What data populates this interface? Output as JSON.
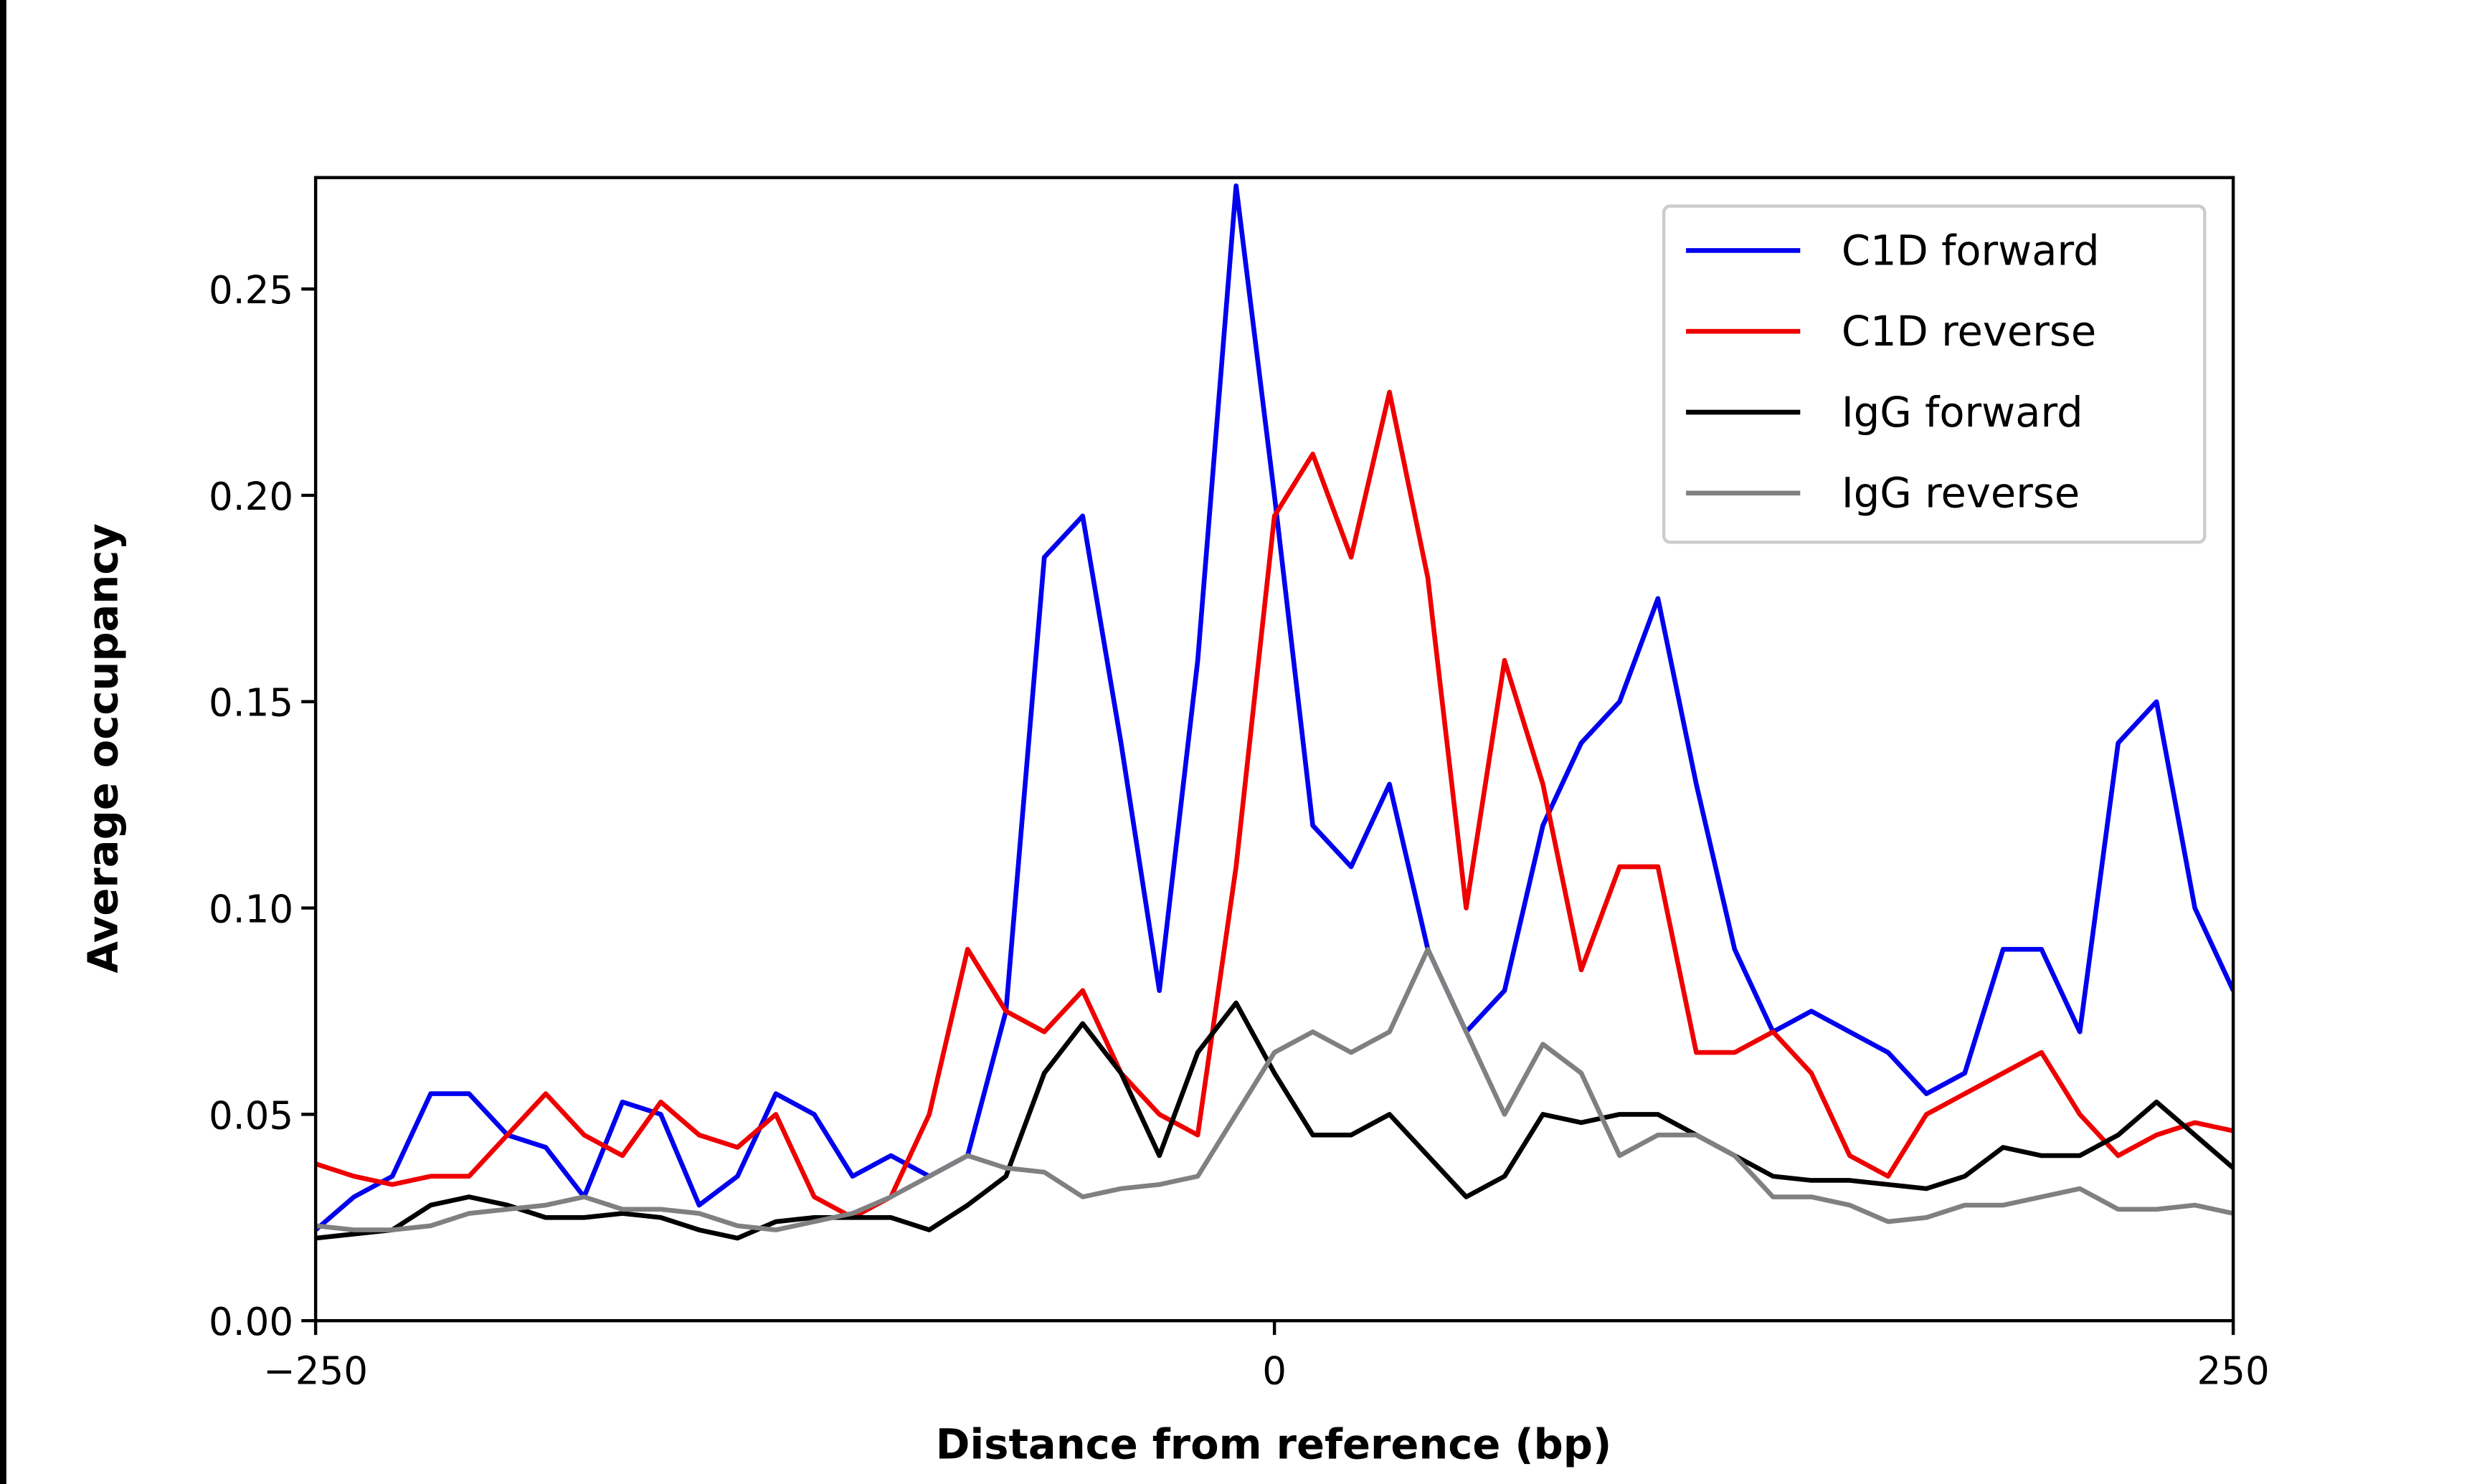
{
  "chart_data": {
    "type": "line",
    "x_label": "Distance from reference (bp)",
    "y_label": "Average occupancy",
    "x": [
      -250,
      -240,
      -230,
      -220,
      -210,
      -200,
      -190,
      -180,
      -170,
      -160,
      -150,
      -140,
      -130,
      -120,
      -110,
      -100,
      -90,
      -80,
      -70,
      -60,
      -50,
      -40,
      -30,
      -20,
      -10,
      0,
      10,
      20,
      30,
      40,
      50,
      60,
      70,
      80,
      90,
      100,
      110,
      120,
      130,
      140,
      150,
      160,
      170,
      180,
      190,
      200,
      210,
      220,
      230,
      240,
      250
    ],
    "series": [
      {
        "name": "C1D forward",
        "color": "#0000ee",
        "values": [
          0.022,
          0.03,
          0.035,
          0.055,
          0.055,
          0.045,
          0.042,
          0.03,
          0.053,
          0.05,
          0.028,
          0.035,
          0.055,
          0.05,
          0.035,
          0.04,
          0.035,
          0.04,
          0.075,
          0.185,
          0.195,
          0.14,
          0.08,
          0.16,
          0.275,
          0.2,
          0.12,
          0.11,
          0.13,
          0.09,
          0.07,
          0.08,
          0.12,
          0.14,
          0.15,
          0.175,
          0.13,
          0.09,
          0.07,
          0.075,
          0.07,
          0.065,
          0.055,
          0.06,
          0.09,
          0.09,
          0.07,
          0.14,
          0.15,
          0.1,
          0.08
        ]
      },
      {
        "name": "C1D reverse",
        "color": "#ee0000",
        "values": [
          0.038,
          0.035,
          0.033,
          0.035,
          0.035,
          0.045,
          0.055,
          0.045,
          0.04,
          0.053,
          0.045,
          0.042,
          0.05,
          0.03,
          0.025,
          0.03,
          0.05,
          0.09,
          0.075,
          0.07,
          0.08,
          0.06,
          0.05,
          0.045,
          0.11,
          0.195,
          0.21,
          0.185,
          0.225,
          0.18,
          0.1,
          0.16,
          0.13,
          0.085,
          0.11,
          0.11,
          0.065,
          0.065,
          0.07,
          0.06,
          0.04,
          0.035,
          0.05,
          0.055,
          0.06,
          0.065,
          0.05,
          0.04,
          0.045,
          0.048,
          0.046
        ]
      },
      {
        "name": "IgG forward",
        "color": "#000000",
        "values": [
          0.02,
          0.021,
          0.022,
          0.028,
          0.03,
          0.028,
          0.025,
          0.025,
          0.026,
          0.025,
          0.022,
          0.02,
          0.024,
          0.025,
          0.025,
          0.025,
          0.022,
          0.028,
          0.035,
          0.06,
          0.072,
          0.06,
          0.04,
          0.065,
          0.077,
          0.06,
          0.045,
          0.045,
          0.05,
          0.04,
          0.03,
          0.035,
          0.05,
          0.048,
          0.05,
          0.05,
          0.045,
          0.04,
          0.035,
          0.034,
          0.034,
          0.033,
          0.032,
          0.035,
          0.042,
          0.04,
          0.04,
          0.045,
          0.053,
          0.045,
          0.037
        ]
      },
      {
        "name": "IgG reverse",
        "color": "#808080",
        "values": [
          0.023,
          0.022,
          0.022,
          0.023,
          0.026,
          0.027,
          0.028,
          0.03,
          0.027,
          0.027,
          0.026,
          0.023,
          0.022,
          0.024,
          0.026,
          0.03,
          0.035,
          0.04,
          0.037,
          0.036,
          0.03,
          0.032,
          0.033,
          0.035,
          0.05,
          0.065,
          0.07,
          0.065,
          0.07,
          0.09,
          0.07,
          0.05,
          0.067,
          0.06,
          0.04,
          0.045,
          0.045,
          0.04,
          0.03,
          0.03,
          0.028,
          0.024,
          0.025,
          0.028,
          0.028,
          0.03,
          0.032,
          0.027,
          0.027,
          0.028,
          0.026
        ]
      }
    ],
    "xlim": [
      -250,
      250
    ],
    "ylim": [
      0,
      0.277
    ],
    "xticks": [
      {
        "value": -250,
        "label": "−250"
      },
      0,
      250
    ],
    "yticks": [
      {
        "value": 0,
        "label": "0.00"
      },
      {
        "value": 0.05,
        "label": "0.05"
      },
      {
        "value": 0.1,
        "label": "0.10"
      },
      {
        "value": 0.15,
        "label": "0.15"
      },
      {
        "value": 0.2,
        "label": "0.20"
      },
      {
        "value": 0.25,
        "label": "0.25"
      }
    ],
    "legend": "upper right"
  }
}
